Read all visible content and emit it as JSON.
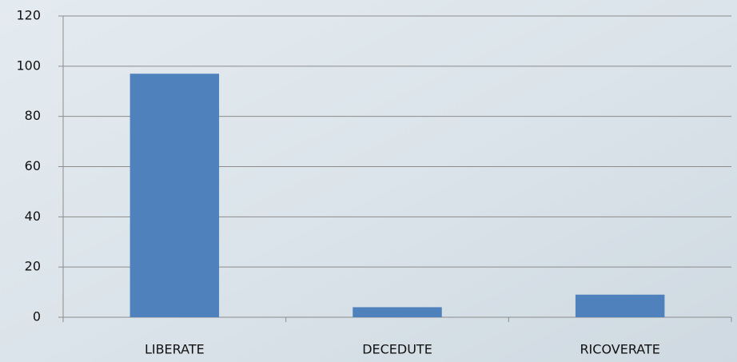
{
  "chart_data": {
    "type": "bar",
    "categories": [
      "LIBERATE",
      "DECEDUTE",
      "RICOVERATE"
    ],
    "values": [
      97,
      4,
      9
    ],
    "color": "#4f81bd",
    "ylim": [
      0,
      120
    ],
    "yticks": [
      0,
      20,
      40,
      60,
      80,
      100,
      120
    ],
    "grid": true
  }
}
